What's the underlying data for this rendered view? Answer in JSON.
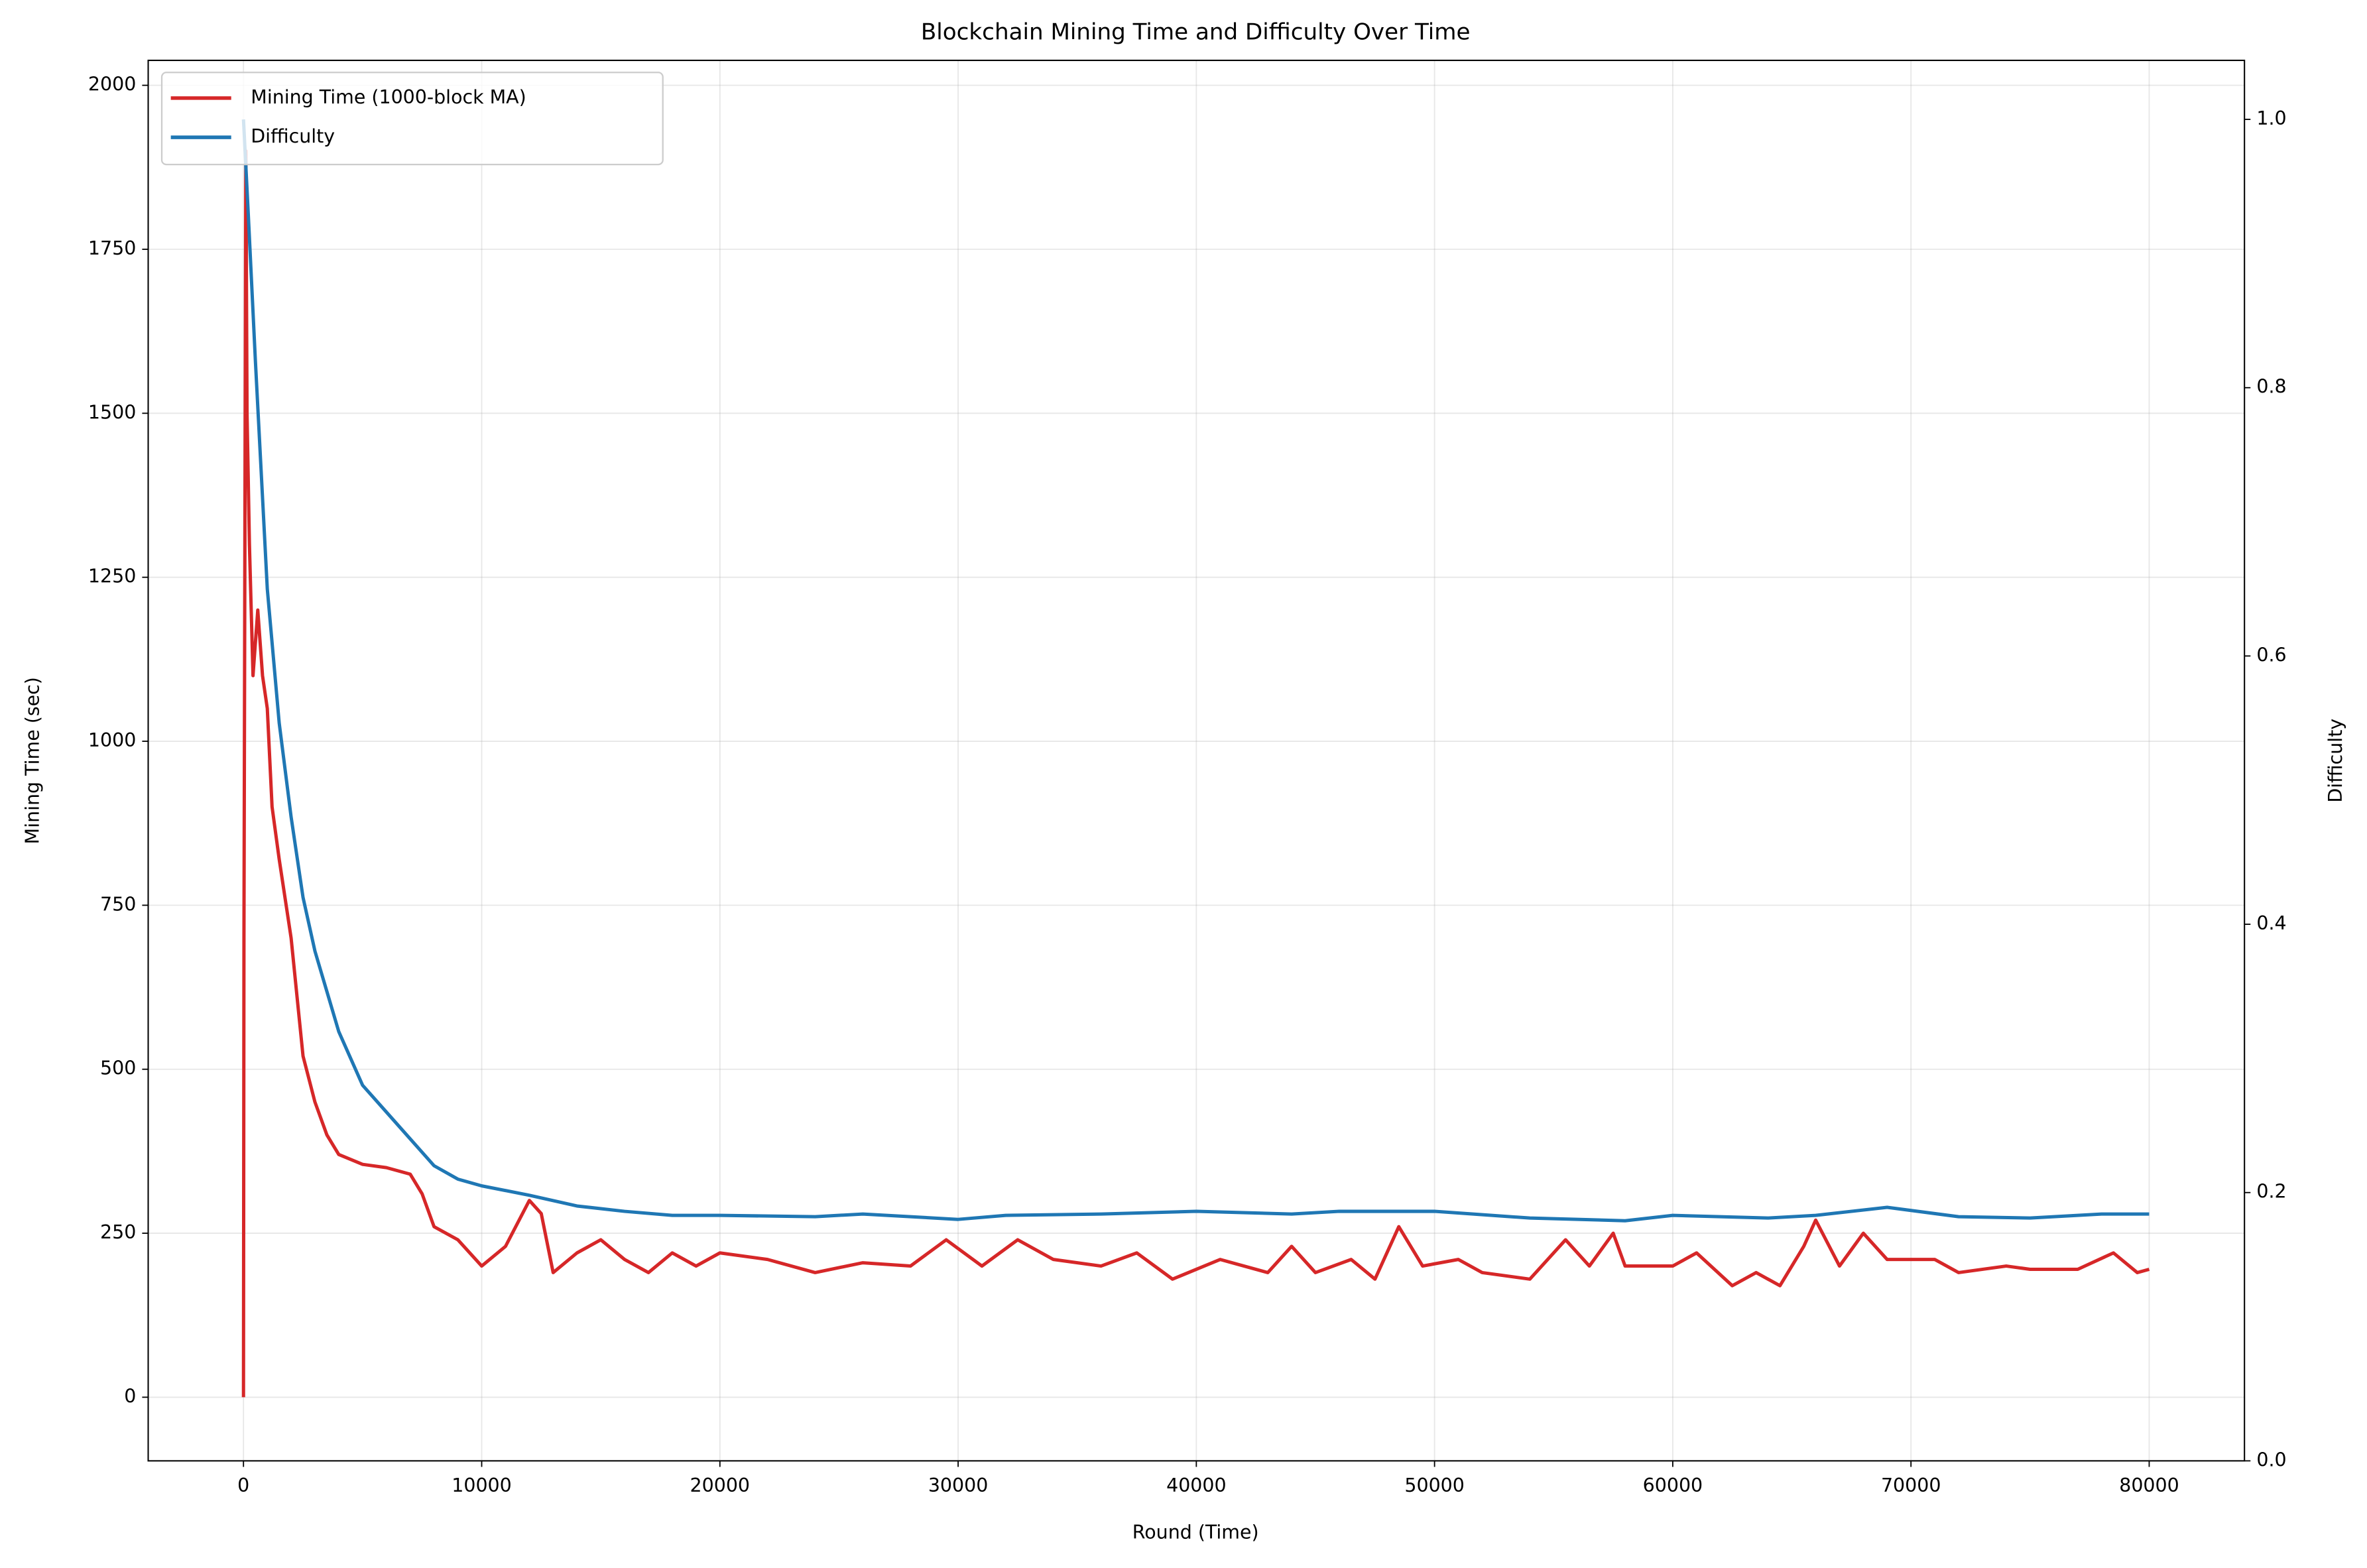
{
  "chart_data": {
    "type": "line",
    "title": "Blockchain Mining Time and Difficulty Over Time",
    "x_label": "Round (Time)",
    "y_label": "Mining Time (sec)",
    "y2_label": "Difficulty",
    "y_color": "#d62728",
    "y2_color": "#1f77b4",
    "grid": true,
    "legend": "upper left",
    "xlim": [
      -4000,
      84000
    ],
    "xticks": [
      0,
      10000,
      20000,
      30000,
      40000,
      50000,
      60000,
      70000,
      80000
    ],
    "ylim": [
      -97,
      2038
    ],
    "yticks": [
      0,
      250,
      500,
      750,
      1000,
      1250,
      1500,
      1750,
      2000
    ],
    "y2lim": [
      0,
      1.044
    ],
    "y2ticks": [
      {
        "value": 0,
        "label": "0.0"
      },
      0.2,
      0.4,
      0.6,
      0.8,
      {
        "value": 1,
        "label": "1.0"
      }
    ],
    "series": [
      {
        "name": "Mining Time (1000-block MA)",
        "color": "#d62728",
        "x": [
          0,
          20,
          100,
          150,
          250,
          400,
          600,
          800,
          1000,
          1200,
          1500,
          2000,
          2500,
          3000,
          3500,
          4000,
          5000,
          6000,
          7000,
          7500,
          8000,
          9000,
          10000,
          11000,
          12000,
          12500,
          13000,
          14000,
          15000,
          16000,
          17000,
          18000,
          19000,
          20000,
          22000,
          24000,
          26000,
          28000,
          29500,
          31000,
          32500,
          34000,
          36000,
          37500,
          39000,
          41000,
          43000,
          44000,
          45000,
          46500,
          47500,
          48500,
          49500,
          51000,
          52000,
          54000,
          55500,
          56500,
          57500,
          58000,
          60000,
          61000,
          62500,
          63500,
          64500,
          65500,
          66000,
          67000,
          68000,
          69000,
          71000,
          72000,
          74000,
          75000,
          77000,
          78500,
          79500,
          80000
        ],
        "values": [
          0,
          700,
          1900,
          1500,
          1300,
          1100,
          1200,
          1100,
          1050,
          900,
          820,
          700,
          520,
          450,
          400,
          370,
          355,
          350,
          340,
          310,
          260,
          240,
          200,
          230,
          300,
          280,
          190,
          220,
          240,
          210,
          190,
          220,
          200,
          220,
          210,
          190,
          205,
          200,
          240,
          200,
          240,
          210,
          200,
          220,
          180,
          210,
          190,
          230,
          190,
          210,
          180,
          260,
          200,
          210,
          190,
          180,
          240,
          200,
          250,
          200,
          200,
          220,
          170,
          190,
          170,
          230,
          270,
          200,
          250,
          210,
          210,
          190,
          200,
          195,
          195,
          220,
          190,
          195
        ]
      },
      {
        "name": "Difficulty",
        "color": "#1f77b4",
        "axis": "y2",
        "x": [
          0,
          200,
          500,
          1000,
          1500,
          2000,
          2500,
          3000,
          3500,
          4000,
          5000,
          6000,
          7000,
          8000,
          9000,
          10000,
          12000,
          14000,
          16000,
          18000,
          20000,
          24000,
          26000,
          30000,
          32000,
          36000,
          40000,
          44000,
          46000,
          50000,
          54000,
          58000,
          60000,
          64000,
          66000,
          69000,
          72000,
          75000,
          78000,
          80000
        ],
        "values": [
          1.0,
          0.93,
          0.82,
          0.65,
          0.55,
          0.48,
          0.42,
          0.38,
          0.35,
          0.32,
          0.28,
          0.26,
          0.24,
          0.22,
          0.21,
          0.205,
          0.198,
          0.19,
          0.186,
          0.183,
          0.183,
          0.182,
          0.184,
          0.18,
          0.183,
          0.184,
          0.186,
          0.184,
          0.186,
          0.186,
          0.181,
          0.179,
          0.183,
          0.181,
          0.183,
          0.189,
          0.182,
          0.181,
          0.184,
          0.184
        ]
      }
    ]
  }
}
